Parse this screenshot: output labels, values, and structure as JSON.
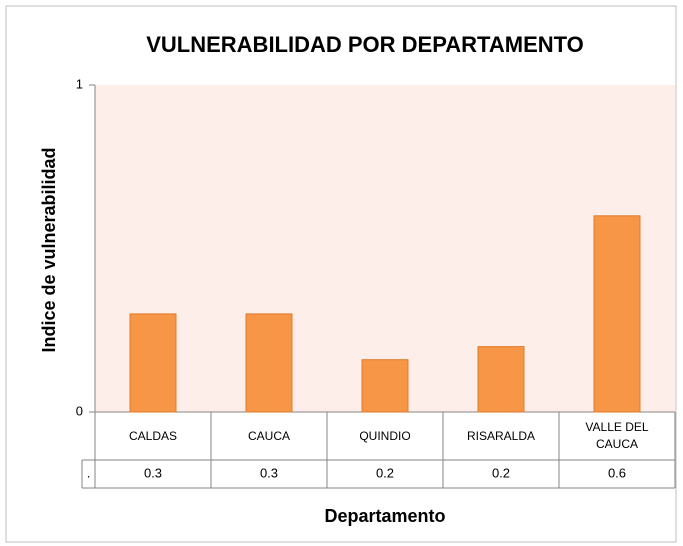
{
  "chart_data": {
    "type": "bar",
    "title": "VULNERABILIDAD POR DEPARTAMENTO",
    "x_label": "Departamento",
    "y_label": "Indice de vulnerabilidad",
    "categories": [
      "CALDAS",
      "CAUCA",
      "QUINDIO",
      "RISARALDA",
      "VALLE DEL CAUCA"
    ],
    "series": [
      {
        "name": ".",
        "color": "#f79646",
        "values": [
          0.3,
          0.3,
          0.16,
          0.2,
          0.6
        ],
        "value_labels": [
          "0.3",
          "0.3",
          "0.2",
          "0.2",
          "0.6"
        ]
      }
    ],
    "ylim": [
      0,
      1
    ],
    "yticks": [
      0,
      1
    ],
    "grid": false,
    "plot_background": "#fdeee9"
  }
}
